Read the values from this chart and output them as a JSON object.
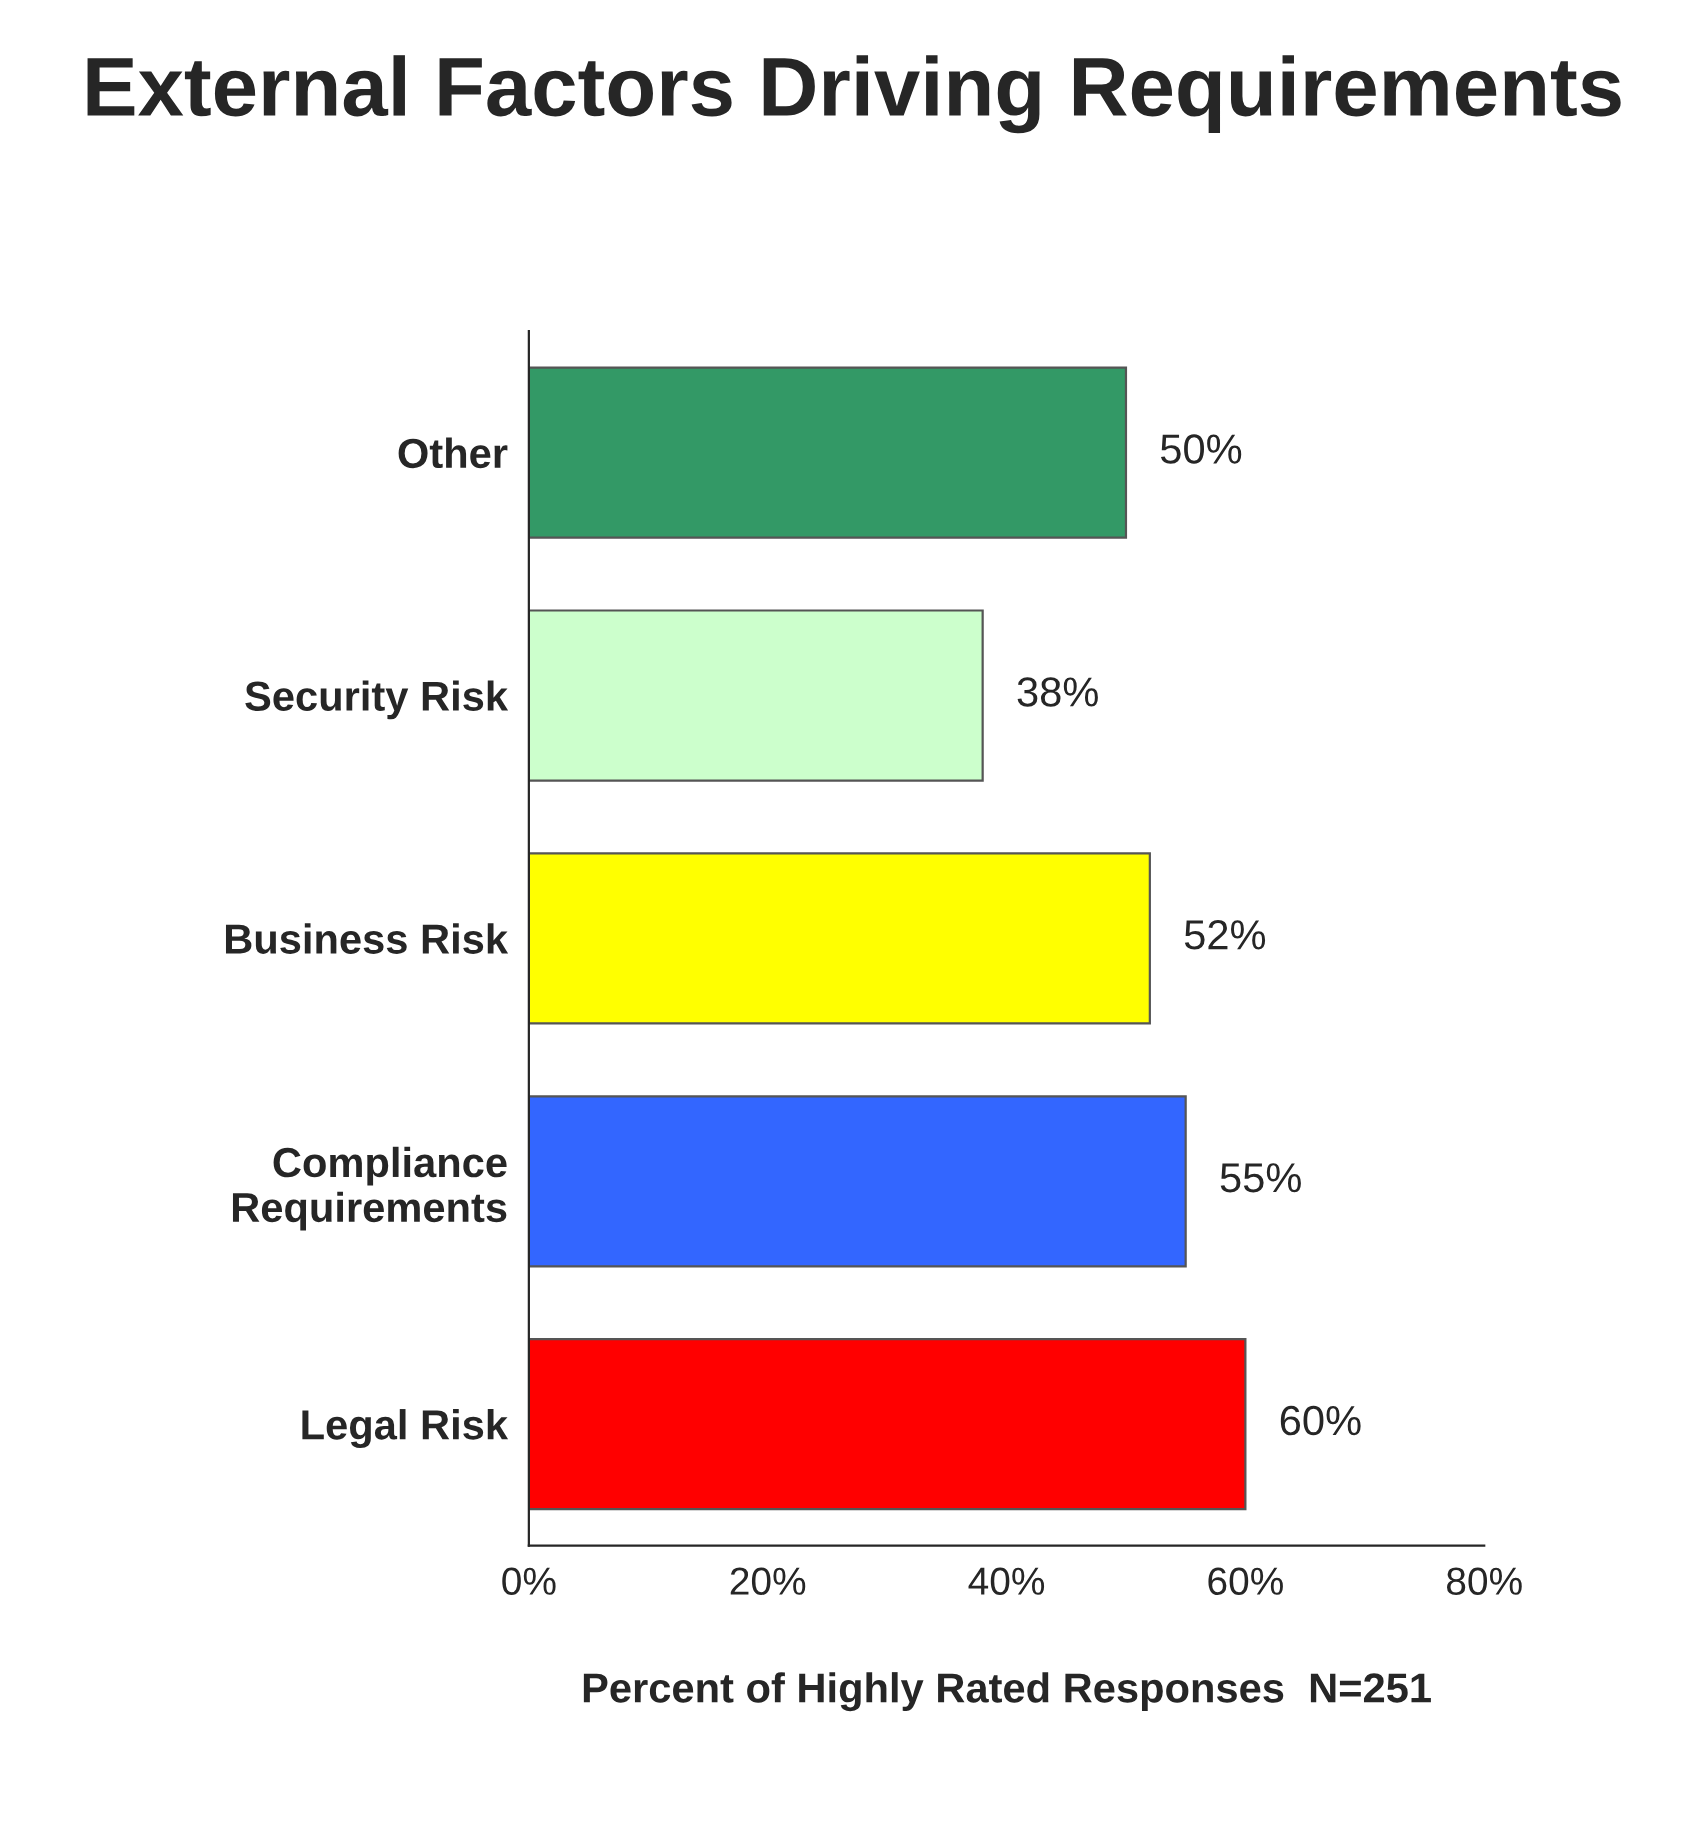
{
  "chart_data": {
    "type": "bar",
    "orientation": "horizontal",
    "title": "External Factors Driving Requirements",
    "xlabel": "Percent of Highly Rated Responses  N=251",
    "categories": [
      "Other",
      "Security Risk",
      "Business Risk",
      "Compliance\nRequirements",
      "Legal Risk"
    ],
    "values": [
      50,
      38,
      52,
      55,
      60
    ],
    "colors": [
      "#339966",
      "#ccffcc",
      "#ffff00",
      "#3366ff",
      "#ff0000"
    ],
    "value_labels": [
      "50%",
      "38%",
      "52%",
      "55%",
      "60%"
    ],
    "xlim": [
      0,
      80
    ],
    "xticks": [
      {
        "value": 0,
        "label": "0%"
      },
      {
        "value": 20,
        "label": "20%"
      },
      {
        "value": 40,
        "label": "40%"
      },
      {
        "value": 60,
        "label": "60%"
      },
      {
        "value": 80,
        "label": "80%"
      }
    ],
    "grid": false,
    "legend": false
  }
}
